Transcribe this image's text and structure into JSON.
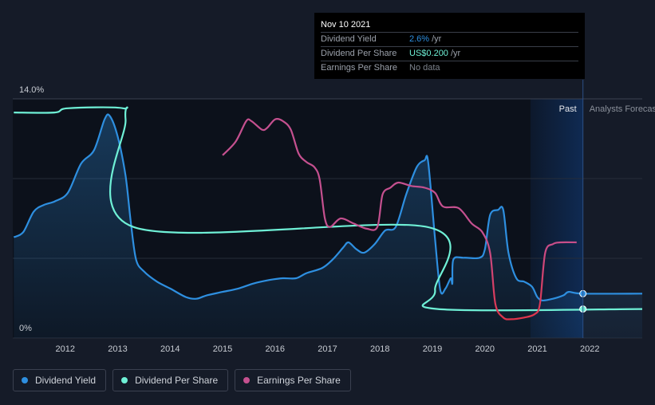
{
  "chart_data": {
    "type": "line",
    "x_axis": {
      "ticks": [
        "2012",
        "2013",
        "2014",
        "2015",
        "2016",
        "2017",
        "2018",
        "2019",
        "2020",
        "2021",
        "2022"
      ],
      "range": [
        2011.0,
        2023.0
      ]
    },
    "y_axis": {
      "ticks": [
        "14.0%",
        "0%"
      ],
      "range": [
        0,
        14.0
      ],
      "unit": "%"
    },
    "regions": {
      "past_label": "Past",
      "forecast_label": "Analysts Forecasts",
      "past_range": [
        2020.87,
        2021.87
      ]
    },
    "grid": true,
    "legend_position": "bottom-left",
    "series": [
      {
        "name": "Dividend Yield",
        "color": "#2e8fe0",
        "area": true,
        "points": [
          [
            2011.02,
            5.9
          ],
          [
            2011.2,
            6.2
          ],
          [
            2011.4,
            7.4
          ],
          [
            2011.6,
            7.8
          ],
          [
            2011.8,
            8.0
          ],
          [
            2012.05,
            8.5
          ],
          [
            2012.3,
            10.2
          ],
          [
            2012.55,
            11.0
          ],
          [
            2012.75,
            12.8
          ],
          [
            2012.85,
            13.0
          ],
          [
            2013.0,
            11.8
          ],
          [
            2013.15,
            9.5
          ],
          [
            2013.25,
            6.8
          ],
          [
            2013.35,
            4.6
          ],
          [
            2013.5,
            3.9
          ],
          [
            2013.75,
            3.3
          ],
          [
            2014.0,
            2.9
          ],
          [
            2014.3,
            2.4
          ],
          [
            2014.5,
            2.3
          ],
          [
            2014.7,
            2.5
          ],
          [
            2015.0,
            2.7
          ],
          [
            2015.3,
            2.9
          ],
          [
            2015.6,
            3.2
          ],
          [
            2015.9,
            3.4
          ],
          [
            2016.15,
            3.5
          ],
          [
            2016.4,
            3.5
          ],
          [
            2016.6,
            3.8
          ],
          [
            2016.9,
            4.1
          ],
          [
            2017.1,
            4.6
          ],
          [
            2017.3,
            5.3
          ],
          [
            2017.4,
            5.6
          ],
          [
            2017.55,
            5.2
          ],
          [
            2017.7,
            5.0
          ],
          [
            2017.9,
            5.5
          ],
          [
            2018.1,
            6.3
          ],
          [
            2018.3,
            6.5
          ],
          [
            2018.5,
            8.4
          ],
          [
            2018.7,
            10.0
          ],
          [
            2018.85,
            10.4
          ],
          [
            2018.92,
            10.3
          ],
          [
            2019.05,
            5.8
          ],
          [
            2019.15,
            2.8
          ],
          [
            2019.25,
            2.9
          ],
          [
            2019.35,
            3.5
          ],
          [
            2019.38,
            3.2
          ],
          [
            2019.4,
            4.6
          ],
          [
            2019.6,
            4.7
          ],
          [
            2019.9,
            4.7
          ],
          [
            2020.0,
            5.2
          ],
          [
            2020.1,
            7.2
          ],
          [
            2020.25,
            7.5
          ],
          [
            2020.35,
            7.5
          ],
          [
            2020.45,
            5.0
          ],
          [
            2020.6,
            3.5
          ],
          [
            2020.75,
            3.3
          ],
          [
            2020.9,
            3.0
          ],
          [
            2021.0,
            2.4
          ],
          [
            2021.1,
            2.2
          ],
          [
            2021.3,
            2.3
          ],
          [
            2021.5,
            2.5
          ],
          [
            2021.6,
            2.7
          ],
          [
            2021.87,
            2.6
          ],
          [
            2023.0,
            2.6
          ]
        ]
      },
      {
        "name": "Dividend Per Share",
        "color": "#6ff0d6",
        "area": false,
        "points": [
          [
            2011.02,
            13.2
          ],
          [
            2011.8,
            13.2
          ],
          [
            2012.05,
            13.45
          ],
          [
            2013.1,
            13.45
          ],
          [
            2013.15,
            12.8
          ],
          [
            2013.3,
            6.5
          ],
          [
            2018.9,
            6.5
          ],
          [
            2019.05,
            2.8
          ],
          [
            2019.1,
            1.7
          ],
          [
            2023.0,
            1.7
          ]
        ]
      },
      {
        "name": "Earnings Per Share",
        "color": "#c5508f",
        "area": false,
        "points": [
          [
            2015.0,
            10.7
          ],
          [
            2015.25,
            11.5
          ],
          [
            2015.45,
            12.7
          ],
          [
            2015.55,
            12.7
          ],
          [
            2015.75,
            12.2
          ],
          [
            2015.85,
            12.3
          ],
          [
            2016.0,
            12.8
          ],
          [
            2016.15,
            12.7
          ],
          [
            2016.3,
            12.2
          ],
          [
            2016.45,
            10.8
          ],
          [
            2016.6,
            10.3
          ],
          [
            2016.75,
            10.0
          ],
          [
            2016.85,
            9.3
          ],
          [
            2016.95,
            7.0
          ],
          [
            2017.05,
            6.5
          ],
          [
            2017.25,
            7.0
          ],
          [
            2017.5,
            6.7
          ],
          [
            2017.75,
            6.4
          ],
          [
            2017.95,
            6.5
          ],
          [
            2018.05,
            8.4
          ],
          [
            2018.2,
            8.8
          ],
          [
            2018.35,
            9.1
          ],
          [
            2018.6,
            8.9
          ],
          [
            2018.85,
            8.8
          ],
          [
            2019.05,
            8.5
          ],
          [
            2019.2,
            7.7
          ],
          [
            2019.5,
            7.6
          ],
          [
            2019.75,
            6.7
          ],
          [
            2019.95,
            6.2
          ],
          [
            2020.1,
            5.0
          ],
          [
            2020.2,
            2.0
          ],
          [
            2020.35,
            1.2
          ],
          [
            2020.5,
            1.1
          ],
          [
            2020.75,
            1.2
          ],
          [
            2020.95,
            1.4
          ],
          [
            2021.05,
            2.0
          ],
          [
            2021.15,
            5.0
          ],
          [
            2021.3,
            5.5
          ],
          [
            2021.45,
            5.6
          ],
          [
            2021.75,
            5.6
          ]
        ]
      }
    ],
    "markers": [
      {
        "series": "Dividend Yield",
        "x": 2021.87,
        "y": 2.6,
        "color": "#2e8fe0"
      },
      {
        "series": "Dividend Per Share",
        "x": 2021.87,
        "y": 1.7,
        "color": "#6ff0d6"
      }
    ]
  },
  "tooltip": {
    "date": "Nov 10 2021",
    "rows": [
      {
        "name": "Dividend Yield",
        "value": "2.6%",
        "unit": "/yr",
        "color": "#2e8fe0"
      },
      {
        "name": "Dividend Per Share",
        "value": "US$0.200",
        "unit": "/yr",
        "color": "#6ff0d6"
      },
      {
        "name": "Earnings Per Share",
        "value": "No data",
        "unit": "",
        "color": "#7d838d"
      }
    ]
  },
  "legend": [
    {
      "label": "Dividend Yield",
      "color": "#2e8fe0"
    },
    {
      "label": "Dividend Per Share",
      "color": "#6ff0d6"
    },
    {
      "label": "Earnings Per Share",
      "color": "#c5508f"
    }
  ],
  "colors": {
    "background": "#151b28",
    "plot_past": "#0c111b",
    "highlight": "#0f2a52"
  }
}
